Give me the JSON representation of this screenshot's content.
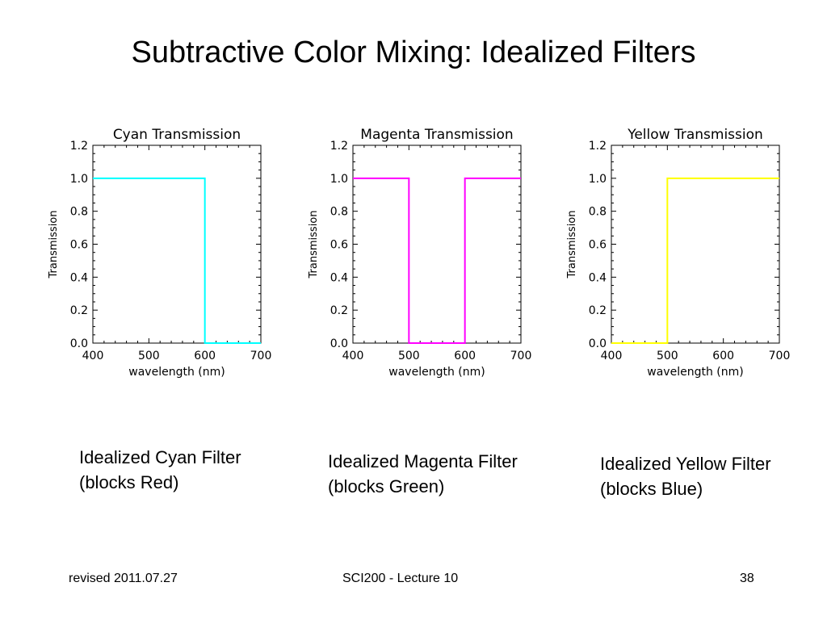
{
  "slide": {
    "title": "Subtractive Color Mixing: Idealized Filters",
    "footer_left": "revised 2011.07.27",
    "footer_center": "SCI200 - Lecture 10",
    "footer_right": "38"
  },
  "captions": [
    {
      "line1": "Idealized Cyan Filter",
      "line2": "(blocks Red)"
    },
    {
      "line1": "Idealized Magenta Filter",
      "line2": "(blocks Green)"
    },
    {
      "line1": "Idealized Yellow Filter",
      "line2": "(blocks Blue)"
    }
  ],
  "chart_data": [
    {
      "type": "line",
      "title": "Cyan Transmission",
      "xlabel": "wavelength (nm)",
      "ylabel": "Transmission",
      "xlim": [
        400,
        700
      ],
      "ylim": [
        0.0,
        1.2
      ],
      "xticks": [
        "400",
        "500",
        "600",
        "700"
      ],
      "yticks": [
        "0.0",
        "0.2",
        "0.4",
        "0.6",
        "0.8",
        "1.0",
        "1.2"
      ],
      "color": "#00FFFF",
      "grid": false,
      "series": [
        {
          "x": [
            400,
            600,
            600,
            700
          ],
          "y": [
            1.0,
            1.0,
            0.0,
            0.0
          ]
        }
      ]
    },
    {
      "type": "line",
      "title": "Magenta Transmission",
      "xlabel": "wavelength (nm)",
      "ylabel": "Transmission",
      "xlim": [
        400,
        700
      ],
      "ylim": [
        0.0,
        1.2
      ],
      "xticks": [
        "400",
        "500",
        "600",
        "700"
      ],
      "yticks": [
        "0.0",
        "0.2",
        "0.4",
        "0.6",
        "0.8",
        "1.0",
        "1.2"
      ],
      "color": "#FF00FF",
      "grid": false,
      "series": [
        {
          "x": [
            400,
            500,
            500,
            600,
            600,
            700
          ],
          "y": [
            1.0,
            1.0,
            0.0,
            0.0,
            1.0,
            1.0
          ]
        }
      ]
    },
    {
      "type": "line",
      "title": "Yellow Transmission",
      "xlabel": "wavelength (nm)",
      "ylabel": "Transmission",
      "xlim": [
        400,
        700
      ],
      "ylim": [
        0.0,
        1.2
      ],
      "xticks": [
        "400",
        "500",
        "600",
        "700"
      ],
      "yticks": [
        "0.0",
        "0.2",
        "0.4",
        "0.6",
        "0.8",
        "1.0",
        "1.2"
      ],
      "color": "#FFFF00",
      "grid": false,
      "series": [
        {
          "x": [
            400,
            500,
            500,
            700
          ],
          "y": [
            0.0,
            0.0,
            1.0,
            1.0
          ]
        }
      ]
    }
  ]
}
